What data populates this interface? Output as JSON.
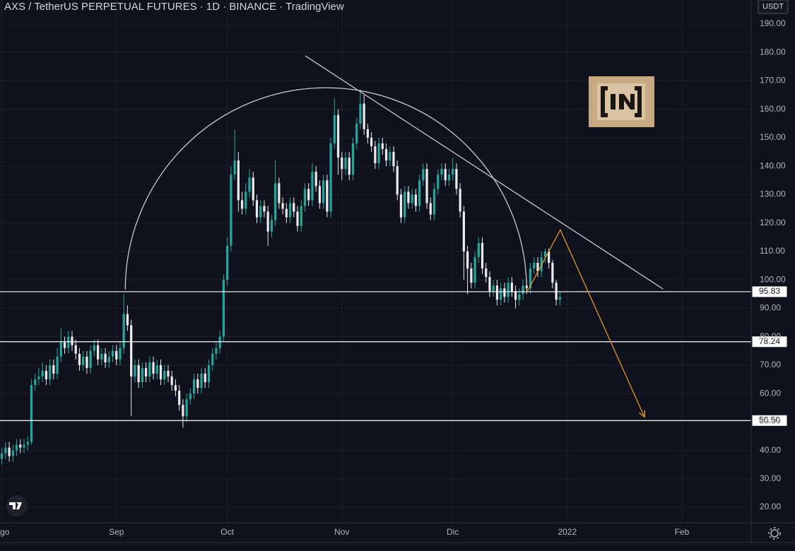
{
  "chart_data": {
    "type": "candlestick",
    "title": "AXS / TetherUS PERPETUAL FUTURES · 1D · BINANCE · TradingView",
    "y_axis_unit": "USDT",
    "up_color": "#26a69a",
    "down_color": "#e9eaee",
    "grid": true,
    "xlim": [
      -0.5,
      202.75
    ],
    "xticks": [
      {
        "value": 0,
        "label": "Ago"
      },
      {
        "value": 31,
        "label": "Sep"
      },
      {
        "value": 61,
        "label": "Oct"
      },
      {
        "value": 92,
        "label": "Nov"
      },
      {
        "value": 122,
        "label": "Dic"
      },
      {
        "value": 153,
        "label": "2022"
      },
      {
        "value": 184,
        "label": "Feb"
      }
    ],
    "ylim": [
      14.55,
      198.45
    ],
    "yticks": [
      {
        "value": 20,
        "label": "20.00"
      },
      {
        "value": 30,
        "label": "30.00"
      },
      {
        "value": 40,
        "label": "40.00"
      },
      {
        "value": 50,
        "label": "50.00"
      },
      {
        "value": 60,
        "label": "60.00"
      },
      {
        "value": 70,
        "label": "70.00"
      },
      {
        "value": 80,
        "label": "80.00"
      },
      {
        "value": 90,
        "label": "90.00"
      },
      {
        "value": 100,
        "label": "100.00"
      },
      {
        "value": 110,
        "label": "110.00"
      },
      {
        "value": 120,
        "label": "120.00"
      },
      {
        "value": 130,
        "label": "130.00"
      },
      {
        "value": 140,
        "label": "140.00"
      },
      {
        "value": 150,
        "label": "150.00"
      },
      {
        "value": 160,
        "label": "160.00"
      },
      {
        "value": 170,
        "label": "170.00"
      },
      {
        "value": 180,
        "label": "180.00"
      },
      {
        "value": 190,
        "label": "190.00"
      }
    ],
    "open": [
      37,
      39,
      41,
      38,
      40,
      42,
      41,
      42,
      43,
      63,
      65,
      66,
      68,
      65,
      70,
      67,
      73,
      78,
      76,
      80,
      77,
      74,
      70,
      73,
      69,
      75,
      77,
      72,
      74,
      71,
      73,
      75,
      72,
      76,
      88,
      84,
      66,
      70,
      64,
      69,
      66,
      71,
      67,
      70,
      65,
      68,
      66,
      63,
      61,
      56,
      52,
      58,
      60,
      65,
      62,
      67,
      64,
      70,
      74,
      76,
      80,
      100,
      112,
      137,
      142,
      128,
      125,
      131,
      136,
      128,
      122,
      126,
      124,
      117,
      121,
      134,
      127,
      125,
      122,
      127,
      124,
      119,
      126,
      132,
      128,
      138,
      133,
      127,
      135,
      124,
      148,
      158,
      143,
      139,
      143,
      137,
      148,
      155,
      162,
      153,
      150,
      147,
      141,
      148,
      146,
      142,
      145,
      140,
      130,
      122,
      131,
      127,
      130,
      126,
      135,
      139,
      127,
      123,
      132,
      137,
      139,
      135,
      137,
      139,
      132,
      124,
      110,
      104,
      99,
      108,
      113,
      104,
      101,
      96,
      98,
      93,
      97,
      94,
      99,
      96,
      93,
      95,
      98,
      97,
      104,
      106,
      103,
      108,
      110,
      106,
      99,
      93
    ],
    "high": [
      41,
      43,
      43,
      42,
      44,
      44,
      44,
      45,
      65,
      67,
      69,
      71,
      70,
      72,
      72,
      76,
      83,
      80,
      82,
      82,
      79,
      76,
      75,
      75,
      77,
      79,
      79,
      76,
      76,
      75,
      77,
      77,
      78,
      95,
      91,
      86,
      72,
      72,
      71,
      71,
      73,
      73,
      72,
      72,
      70,
      70,
      68,
      65,
      63,
      58,
      60,
      62,
      67,
      67,
      69,
      69,
      72,
      76,
      78,
      82,
      102,
      115,
      140,
      153,
      145,
      131,
      134,
      139,
      138,
      130,
      128,
      128,
      126,
      123,
      142,
      136,
      129,
      127,
      129,
      129,
      126,
      128,
      134,
      134,
      141,
      140,
      135,
      137,
      137,
      150,
      164,
      160,
      145,
      145,
      145,
      150,
      157,
      167,
      165,
      155,
      152,
      149,
      150,
      150,
      148,
      147,
      147,
      142,
      132,
      133,
      133,
      132,
      132,
      137,
      141,
      141,
      129,
      134,
      139,
      141,
      141,
      139,
      143,
      141,
      134,
      126,
      112,
      106,
      110,
      115,
      115,
      106,
      103,
      100,
      100,
      99,
      99,
      101,
      101,
      98,
      97,
      100,
      100,
      106,
      108,
      108,
      110,
      111,
      111,
      107,
      100,
      96
    ],
    "low": [
      35,
      37,
      36,
      36,
      38,
      39,
      39,
      40,
      42,
      61,
      63,
      64,
      63,
      63,
      65,
      65,
      71,
      74,
      74,
      75,
      72,
      68,
      68,
      67,
      67,
      73,
      70,
      70,
      69,
      69,
      71,
      70,
      70,
      74,
      82,
      52,
      64,
      62,
      62,
      64,
      64,
      65,
      65,
      63,
      63,
      64,
      61,
      59,
      54,
      48,
      50,
      56,
      58,
      60,
      60,
      62,
      62,
      68,
      72,
      74,
      78,
      98,
      110,
      135,
      124,
      123,
      123,
      129,
      126,
      120,
      120,
      122,
      112,
      115,
      119,
      125,
      123,
      120,
      120,
      122,
      117,
      117,
      124,
      126,
      126,
      131,
      125,
      125,
      122,
      122,
      146,
      137,
      135,
      137,
      135,
      135,
      146,
      153,
      151,
      148,
      145,
      139,
      139,
      144,
      140,
      140,
      138,
      128,
      120,
      120,
      125,
      125,
      124,
      124,
      133,
      125,
      121,
      121,
      130,
      135,
      133,
      133,
      135,
      130,
      122,
      100,
      95,
      97,
      97,
      106,
      102,
      99,
      94,
      94,
      91,
      91,
      92,
      92,
      94,
      90,
      91,
      93,
      95,
      95,
      102,
      101,
      101,
      106,
      104,
      97,
      91,
      91
    ],
    "close": [
      39,
      41,
      38,
      40,
      42,
      41,
      42,
      43,
      63,
      65,
      66,
      68,
      65,
      70,
      67,
      73,
      78,
      76,
      80,
      77,
      74,
      70,
      73,
      69,
      75,
      77,
      72,
      74,
      71,
      73,
      75,
      72,
      76,
      88,
      84,
      66,
      70,
      64,
      69,
      66,
      71,
      67,
      70,
      65,
      68,
      66,
      63,
      61,
      56,
      52,
      58,
      60,
      65,
      62,
      67,
      64,
      70,
      74,
      76,
      80,
      100,
      112,
      137,
      142,
      128,
      125,
      131,
      136,
      128,
      122,
      126,
      124,
      117,
      121,
      134,
      127,
      125,
      122,
      127,
      124,
      119,
      126,
      132,
      128,
      138,
      133,
      127,
      135,
      124,
      148,
      158,
      143,
      139,
      143,
      137,
      148,
      155,
      162,
      153,
      150,
      147,
      141,
      148,
      146,
      142,
      145,
      140,
      130,
      122,
      131,
      127,
      130,
      126,
      135,
      139,
      127,
      123,
      132,
      137,
      139,
      135,
      137,
      139,
      132,
      124,
      110,
      104,
      99,
      108,
      113,
      104,
      101,
      96,
      98,
      93,
      97,
      94,
      99,
      96,
      93,
      95,
      98,
      97,
      104,
      106,
      103,
      108,
      110,
      106,
      99,
      93,
      94
    ],
    "levels": [
      95.83,
      78.24,
      {
        "value": 50.5,
        "label": "50.50"
      }
    ],
    "level_color": "#ffffff",
    "drawings": [
      {
        "shape": "line",
        "color": "#c8c9cc",
        "points": [
          [
            82.1,
            178.8
          ],
          [
            178.9,
            96.8
          ]
        ]
      },
      {
        "shape": "arc",
        "color": "#c8c9cc",
        "points": [
          [
            33.4,
            96.6
          ],
          [
            90.3,
            167.6
          ],
          [
            142,
            96.6
          ]
        ]
      },
      {
        "shape": "arrow",
        "color": "#e0952a",
        "points": [
          [
            142,
            95.5
          ],
          [
            151.1,
            117.6
          ],
          [
            173.9,
            51.7
          ]
        ]
      }
    ]
  }
}
